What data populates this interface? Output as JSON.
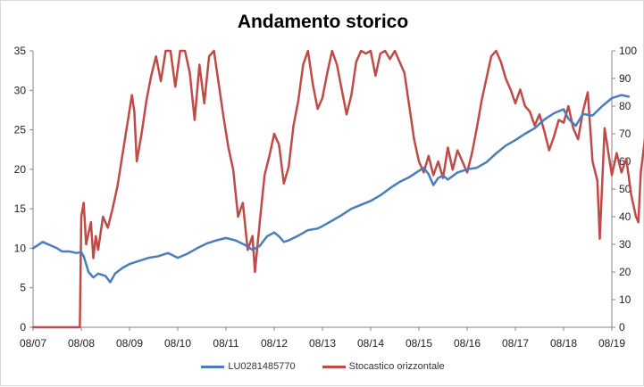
{
  "chart_data": {
    "type": "line",
    "title": "Andamento storico",
    "x": [
      "08/07",
      "08/08",
      "08/09",
      "08/10",
      "08/11",
      "08/12",
      "08/13",
      "08/14",
      "08/15",
      "08/16",
      "08/17",
      "08/18",
      "08/19"
    ],
    "y_left": {
      "ylim": [
        0,
        35
      ],
      "ticks": [
        "0",
        "5",
        "10",
        "15",
        "20",
        "25",
        "30",
        "35"
      ]
    },
    "y_right": {
      "ylim": [
        0,
        100
      ],
      "ticks": [
        "0",
        "10",
        "20",
        "30",
        "40",
        "50",
        "60",
        "70",
        "80",
        "90",
        "100"
      ]
    },
    "grid": false,
    "legend": "bottom",
    "series": [
      {
        "name": "LU0281485770",
        "axis": "left",
        "color": "#4a7ebb",
        "points": [
          [
            0,
            10.0
          ],
          [
            0.1,
            10.4
          ],
          [
            0.2,
            10.8
          ],
          [
            0.35,
            10.4
          ],
          [
            0.5,
            10.0
          ],
          [
            0.6,
            9.6
          ],
          [
            0.75,
            9.6
          ],
          [
            0.9,
            9.4
          ],
          [
            1.0,
            9.5
          ],
          [
            1.05,
            9.0
          ],
          [
            1.15,
            7.0
          ],
          [
            1.25,
            6.3
          ],
          [
            1.35,
            6.8
          ],
          [
            1.5,
            6.5
          ],
          [
            1.6,
            5.7
          ],
          [
            1.7,
            6.8
          ],
          [
            1.85,
            7.5
          ],
          [
            2.0,
            8.0
          ],
          [
            2.2,
            8.4
          ],
          [
            2.4,
            8.8
          ],
          [
            2.6,
            9.0
          ],
          [
            2.8,
            9.4
          ],
          [
            3.0,
            8.8
          ],
          [
            3.2,
            9.3
          ],
          [
            3.4,
            10.0
          ],
          [
            3.6,
            10.6
          ],
          [
            3.8,
            11.0
          ],
          [
            4.0,
            11.3
          ],
          [
            4.2,
            11.0
          ],
          [
            4.4,
            10.4
          ],
          [
            4.55,
            9.8
          ],
          [
            4.7,
            10.3
          ],
          [
            4.85,
            11.5
          ],
          [
            5.0,
            12.0
          ],
          [
            5.1,
            11.5
          ],
          [
            5.2,
            10.8
          ],
          [
            5.3,
            11.0
          ],
          [
            5.5,
            11.6
          ],
          [
            5.7,
            12.3
          ],
          [
            5.9,
            12.5
          ],
          [
            6.0,
            12.8
          ],
          [
            6.2,
            13.5
          ],
          [
            6.4,
            14.2
          ],
          [
            6.6,
            15.0
          ],
          [
            6.8,
            15.5
          ],
          [
            7.0,
            16.0
          ],
          [
            7.2,
            16.7
          ],
          [
            7.4,
            17.6
          ],
          [
            7.6,
            18.4
          ],
          [
            7.8,
            19.0
          ],
          [
            8.0,
            19.8
          ],
          [
            8.1,
            20.2
          ],
          [
            8.2,
            19.4
          ],
          [
            8.3,
            18.0
          ],
          [
            8.4,
            18.9
          ],
          [
            8.5,
            19.2
          ],
          [
            8.6,
            18.7
          ],
          [
            8.8,
            19.6
          ],
          [
            9.0,
            20.0
          ],
          [
            9.2,
            20.2
          ],
          [
            9.4,
            20.9
          ],
          [
            9.6,
            22.0
          ],
          [
            9.8,
            23.0
          ],
          [
            10.0,
            23.7
          ],
          [
            10.2,
            24.5
          ],
          [
            10.4,
            25.2
          ],
          [
            10.6,
            26.3
          ],
          [
            10.8,
            27.1
          ],
          [
            11.0,
            27.6
          ],
          [
            11.1,
            26.4
          ],
          [
            11.25,
            25.5
          ],
          [
            11.4,
            27.0
          ],
          [
            11.6,
            26.8
          ],
          [
            11.8,
            28.0
          ],
          [
            12.0,
            29.0
          ],
          [
            12.2,
            29.4
          ],
          [
            12.35,
            29.2
          ]
        ]
      },
      {
        "name": "Stocastico orizzontale",
        "axis": "right",
        "color": "#be4b48",
        "points": [
          [
            0,
            0
          ],
          [
            0.5,
            0
          ],
          [
            0.97,
            0
          ],
          [
            1.0,
            40
          ],
          [
            1.05,
            45
          ],
          [
            1.1,
            30
          ],
          [
            1.2,
            38
          ],
          [
            1.25,
            25
          ],
          [
            1.3,
            33
          ],
          [
            1.35,
            28
          ],
          [
            1.45,
            40
          ],
          [
            1.55,
            36
          ],
          [
            1.65,
            43
          ],
          [
            1.75,
            51
          ],
          [
            1.85,
            62
          ],
          [
            1.95,
            73
          ],
          [
            2.05,
            84
          ],
          [
            2.1,
            78
          ],
          [
            2.15,
            60
          ],
          [
            2.25,
            70
          ],
          [
            2.35,
            82
          ],
          [
            2.45,
            91
          ],
          [
            2.55,
            98
          ],
          [
            2.65,
            89
          ],
          [
            2.75,
            100
          ],
          [
            2.85,
            100
          ],
          [
            2.95,
            87
          ],
          [
            3.05,
            100
          ],
          [
            3.15,
            100
          ],
          [
            3.25,
            92
          ],
          [
            3.35,
            75
          ],
          [
            3.45,
            95
          ],
          [
            3.55,
            81
          ],
          [
            3.65,
            98
          ],
          [
            3.75,
            100
          ],
          [
            3.85,
            88
          ],
          [
            3.95,
            76
          ],
          [
            4.05,
            65
          ],
          [
            4.15,
            57
          ],
          [
            4.25,
            40
          ],
          [
            4.35,
            45
          ],
          [
            4.45,
            28
          ],
          [
            4.55,
            33
          ],
          [
            4.6,
            20
          ],
          [
            4.7,
            38
          ],
          [
            4.8,
            55
          ],
          [
            4.9,
            62
          ],
          [
            5.0,
            70
          ],
          [
            5.1,
            66
          ],
          [
            5.2,
            52
          ],
          [
            5.3,
            58
          ],
          [
            5.4,
            73
          ],
          [
            5.5,
            82
          ],
          [
            5.6,
            95
          ],
          [
            5.7,
            100
          ],
          [
            5.8,
            88
          ],
          [
            5.9,
            79
          ],
          [
            6.0,
            83
          ],
          [
            6.1,
            92
          ],
          [
            6.2,
            100
          ],
          [
            6.3,
            95
          ],
          [
            6.4,
            86
          ],
          [
            6.5,
            77
          ],
          [
            6.6,
            84
          ],
          [
            6.7,
            96
          ],
          [
            6.8,
            100
          ],
          [
            6.9,
            99
          ],
          [
            7.0,
            100
          ],
          [
            7.1,
            91
          ],
          [
            7.2,
            99
          ],
          [
            7.3,
            100
          ],
          [
            7.4,
            97
          ],
          [
            7.5,
            100
          ],
          [
            7.6,
            96
          ],
          [
            7.7,
            92
          ],
          [
            7.8,
            80
          ],
          [
            7.9,
            68
          ],
          [
            8.0,
            60
          ],
          [
            8.1,
            56
          ],
          [
            8.2,
            62
          ],
          [
            8.3,
            55
          ],
          [
            8.4,
            60
          ],
          [
            8.5,
            54
          ],
          [
            8.6,
            65
          ],
          [
            8.7,
            57
          ],
          [
            8.8,
            64
          ],
          [
            8.9,
            60
          ],
          [
            9.0,
            56
          ],
          [
            9.1,
            63
          ],
          [
            9.2,
            72
          ],
          [
            9.3,
            82
          ],
          [
            9.4,
            90
          ],
          [
            9.5,
            98
          ],
          [
            9.6,
            100
          ],
          [
            9.7,
            96
          ],
          [
            9.8,
            90
          ],
          [
            9.9,
            86
          ],
          [
            10.0,
            81
          ],
          [
            10.1,
            86
          ],
          [
            10.2,
            80
          ],
          [
            10.3,
            78
          ],
          [
            10.4,
            73
          ],
          [
            10.5,
            77
          ],
          [
            10.6,
            71
          ],
          [
            10.7,
            64
          ],
          [
            10.8,
            69
          ],
          [
            10.9,
            75
          ],
          [
            11.0,
            74
          ],
          [
            11.1,
            80
          ],
          [
            11.2,
            72
          ],
          [
            11.3,
            68
          ],
          [
            11.4,
            78
          ],
          [
            11.5,
            85
          ],
          [
            11.6,
            60
          ],
          [
            11.7,
            53
          ],
          [
            11.75,
            32
          ],
          [
            11.85,
            72
          ],
          [
            12.0,
            55
          ],
          [
            12.1,
            63
          ],
          [
            12.2,
            56
          ],
          [
            12.3,
            61
          ],
          [
            12.4,
            48
          ],
          [
            12.5,
            40
          ],
          [
            12.55,
            38
          ],
          [
            12.6,
            56
          ],
          [
            12.7,
            70
          ]
        ]
      }
    ]
  }
}
